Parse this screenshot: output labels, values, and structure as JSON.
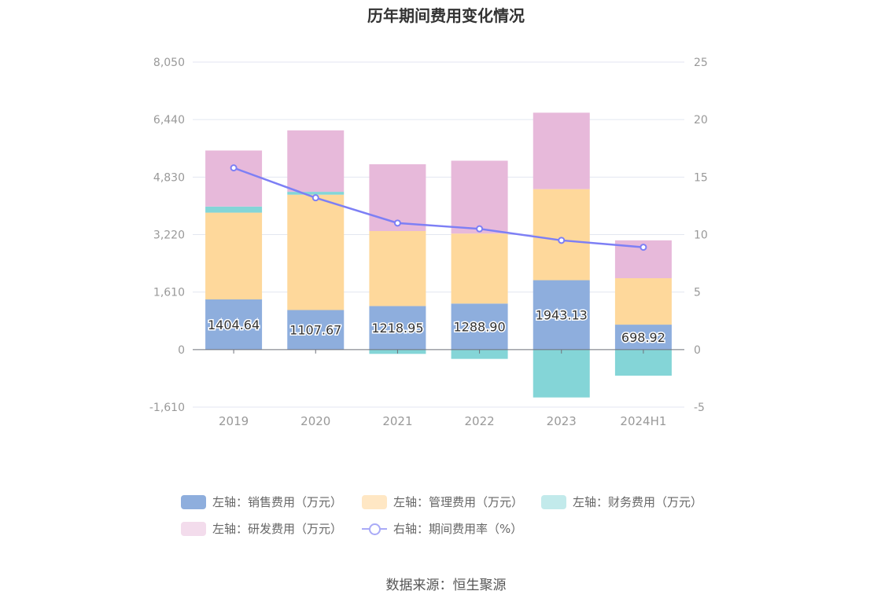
{
  "title": "历年期间费用变化情况",
  "source": "数据来源：恒生聚源",
  "colors": {
    "sales": "#8eaedd",
    "admin": "#fed89b",
    "finance": "#84d5d7",
    "rd": "#e7b9da",
    "rate": "#7d7ff5",
    "grid": "#e3e6f0",
    "axis_text": "#999999"
  },
  "legend": {
    "sales": "左轴：销售费用（万元）",
    "admin": "左轴：管理费用（万元）",
    "finance": "左轴：财务费用（万元）",
    "rd": "左轴：研发费用（万元）",
    "rate": "右轴：期间费用率（%）"
  },
  "chart_data": {
    "type": "bar",
    "stacked": true,
    "categories": [
      "2019",
      "2020",
      "2021",
      "2022",
      "2023",
      "2024H1"
    ],
    "series": [
      {
        "name": "左轴：销售费用（万元）",
        "axis": "left",
        "values": [
          1404.64,
          1107.67,
          1218.95,
          1288.9,
          1943.13,
          698.92
        ],
        "labels": [
          "1404.64",
          "1107.67",
          "1218.95",
          "1288.90",
          "1943.13",
          "698.92"
        ]
      },
      {
        "name": "左轴：管理费用（万元）",
        "axis": "left",
        "values": [
          2430,
          3230,
          2100,
          1960,
          2550,
          1300
        ]
      },
      {
        "name": "左轴：财务费用（万元）",
        "axis": "left",
        "values": [
          170,
          80,
          -120,
          -260,
          -1340,
          -730
        ]
      },
      {
        "name": "左轴：研发费用（万元）",
        "axis": "left",
        "values": [
          1570,
          1720,
          1870,
          2040,
          2140,
          1060
        ]
      },
      {
        "name": "右轴：期间费用率（%）",
        "axis": "right",
        "type": "line",
        "values": [
          15.8,
          13.2,
          11.0,
          10.5,
          9.5,
          8.9
        ]
      }
    ],
    "y_left": {
      "ticks": [
        "8,050",
        "6,440",
        "4,830",
        "3,220",
        "1,610",
        "0",
        "-1,610"
      ],
      "lim": [
        -1610,
        8050
      ]
    },
    "y_right": {
      "ticks": [
        "25",
        "20",
        "15",
        "10",
        "5",
        "0",
        "-5"
      ],
      "lim": [
        -5,
        25
      ]
    },
    "grid": true,
    "legend_position": "bottom"
  }
}
